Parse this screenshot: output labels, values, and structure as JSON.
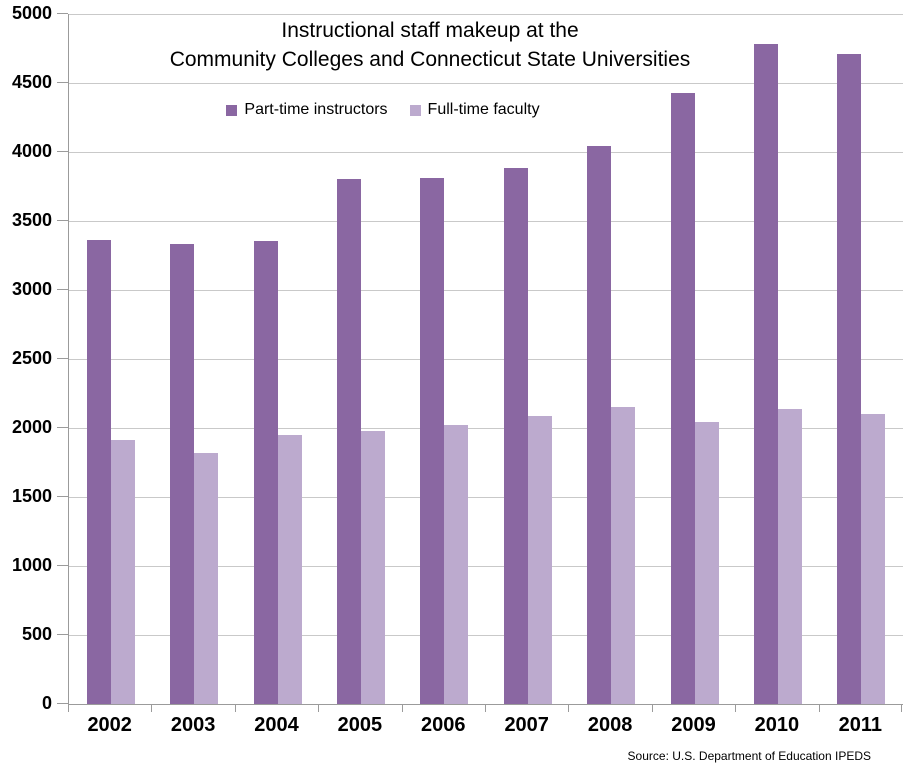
{
  "chart_data": {
    "type": "bar",
    "title_lines": [
      "Instructional staff makeup at the",
      "Community Colleges and Connecticut State Universities"
    ],
    "categories": [
      "2002",
      "2003",
      "2004",
      "2005",
      "2006",
      "2007",
      "2008",
      "2009",
      "2010",
      "2011"
    ],
    "series": [
      {
        "name": "Part-time instructors",
        "color": "#8A67A2",
        "values": [
          3360,
          3330,
          3355,
          3805,
          3815,
          3885,
          4040,
          4430,
          4780,
          4710
        ]
      },
      {
        "name": "Full-time faculty",
        "color": "#BCAACE",
        "values": [
          1910,
          1820,
          1950,
          1975,
          2020,
          2090,
          2155,
          2045,
          2140,
          2100
        ]
      }
    ],
    "ylim": [
      0,
      5000
    ],
    "ytick_step": 500,
    "grid": true,
    "legend_position": "top-center",
    "xlabel": "",
    "ylabel": "",
    "source": "Source: U.S. Department of Education IPEDS",
    "colors": {
      "gridline": "#C9C9C9",
      "axis": "#9B9B9B",
      "text": "#000000"
    }
  }
}
